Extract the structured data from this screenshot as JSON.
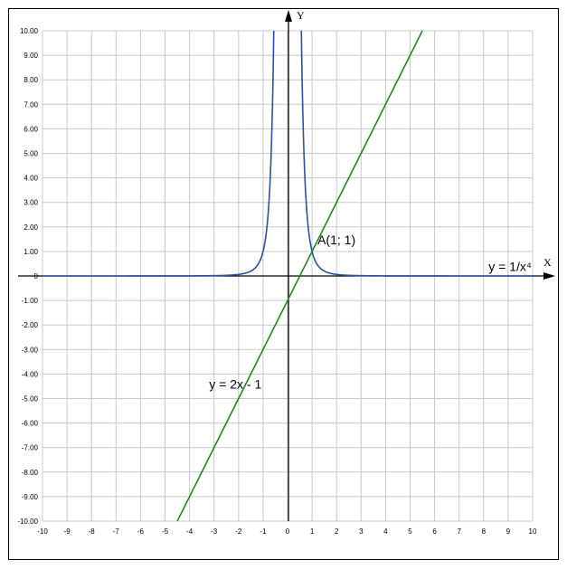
{
  "chart_data": {
    "type": "line",
    "xlim": [
      -10,
      10
    ],
    "ylim": [
      -10,
      10
    ],
    "x_step": 1,
    "y_step": 1,
    "grid": true,
    "axis_labels": {
      "x": "X",
      "y": "Y"
    },
    "x_tick_labels": [
      "-10",
      "-9",
      "-8",
      "-7",
      "-6",
      "-5",
      "-4",
      "-3",
      "-2",
      "-1",
      "0",
      "1",
      "2",
      "3",
      "4",
      "5",
      "6",
      "7",
      "8",
      "9",
      "10"
    ],
    "y_tick_labels": [
      "10.00",
      "9.00",
      "8.00",
      "7.00",
      "6.00",
      "5.00",
      "4.00",
      "3.00",
      "2.00",
      "1.00",
      "0",
      "-1.00",
      "-2.00",
      "-3.00",
      "-4.00",
      "-5.00",
      "-6.00",
      "-7.00",
      "-8.00",
      "-9.00",
      "-10.00"
    ],
    "series": [
      {
        "name": "y = 1/x⁴",
        "formula": "1/x^4",
        "color": "#2E4FA0"
      },
      {
        "name": "y = 2x - 1",
        "formula": "2x-1",
        "color": "#1E8A1E"
      }
    ],
    "annotations": [
      {
        "text": "A(1; 1)",
        "x": 1,
        "y": 1
      },
      {
        "text": "y = 1/x⁴",
        "x": 8.2,
        "y": 0.2
      },
      {
        "text": "y = 2x - 1",
        "x": -3.2,
        "y": -4.6
      }
    ]
  }
}
